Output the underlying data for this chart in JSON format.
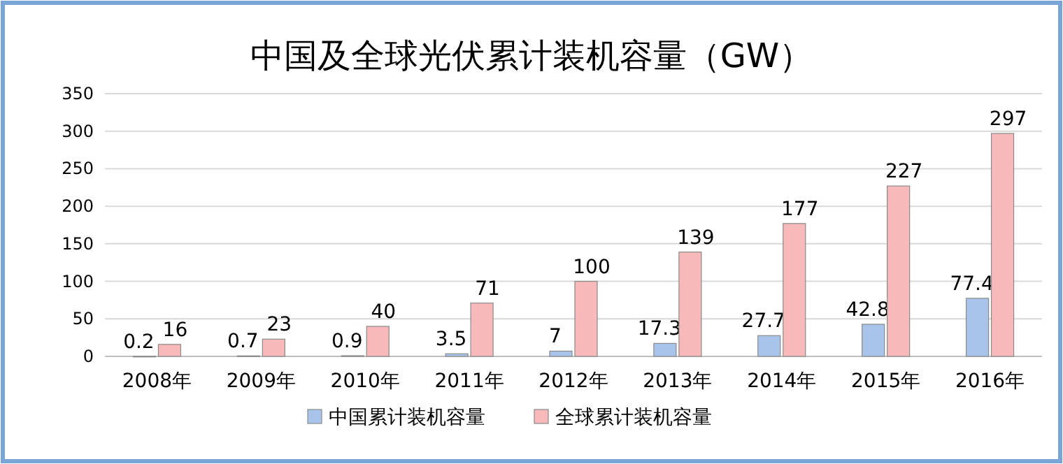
{
  "chart_data": {
    "type": "bar",
    "title": "中国及全球光伏累计装机容量（GW）",
    "categories": [
      "2008年",
      "2009年",
      "2010年",
      "2011年",
      "2012年",
      "2013年",
      "2014年",
      "2015年",
      "2016年"
    ],
    "series": [
      {
        "name": "中国累计装机容量",
        "color": "#a9c4eb",
        "values": [
          0.2,
          0.7,
          0.9,
          3.5,
          7,
          17.3,
          27.7,
          42.8,
          77.4
        ]
      },
      {
        "name": "全球累计装机容量",
        "color": "#f7b9b9",
        "values": [
          16,
          23,
          40,
          71,
          100,
          139,
          177,
          227,
          297
        ]
      }
    ],
    "ylim": [
      0,
      350
    ],
    "yticks": [
      0,
      50,
      100,
      150,
      200,
      250,
      300,
      350
    ],
    "grid": "y",
    "legend": "bottom",
    "data_labels": true
  }
}
